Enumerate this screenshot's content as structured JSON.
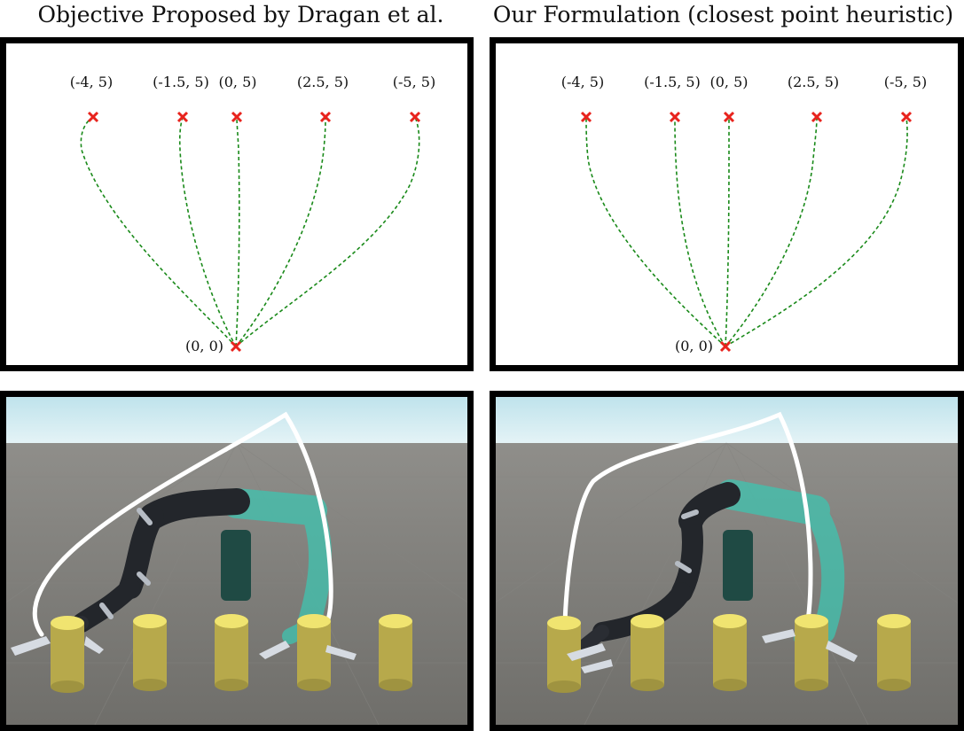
{
  "titles": {
    "left": "Objective Proposed by Dragan et al.",
    "right": "Our Formulation (closest point heuristic)"
  },
  "plots": {
    "left": {
      "start_label": "(0, 0)",
      "goal_labels": [
        "(-4, 5)",
        "(-1.5, 5)",
        "(0, 5)",
        "(2.5, 5)",
        "(-5, 5)"
      ]
    },
    "right": {
      "start_label": "(0, 0)",
      "goal_labels": [
        "(-4, 5)",
        "(-1.5, 5)",
        "(0, 5)",
        "(2.5, 5)",
        "(-5, 5)"
      ]
    }
  },
  "colors": {
    "trajectory": "#1a8a1a",
    "marker": "#e8231d",
    "sky": "#cde9f0",
    "floor": "#7c7b77",
    "cylinder": "#c9b955",
    "cylinder_top": "#f0e470",
    "robot": "#23262b",
    "robot_ghost": "#3fc4b0",
    "path": "#ffffff"
  },
  "icons": {
    "marker": "x-mark-icon"
  }
}
